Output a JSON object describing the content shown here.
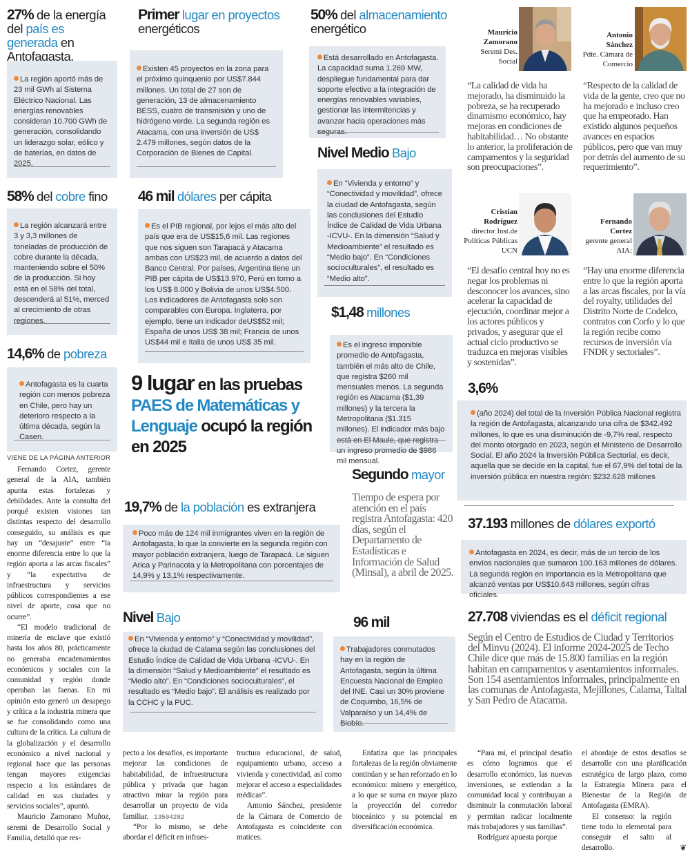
{
  "colors": {
    "accent_blue": "#2389c2",
    "box_bg": "#e3e9ee",
    "bullet_orange": "#f0883a"
  },
  "stats": {
    "energia": {
      "head": [
        "27%",
        " de la energía del ",
        "país es generada",
        " en Antofagasta."
      ],
      "body": "La región aportó más de 23 mil GWh al Sistema Eléctrico Nacional. Las energías renovables consideran 10.700 GWh de generación, consolidando un liderazgo solar, eólico y de baterías, en datos de 2025."
    },
    "primer": {
      "head": [
        "Primer",
        " lugar en proyectos",
        " energéticos"
      ],
      "body": "Existen 45 proyectos en la zona para el próximo quinquenio por US$7.844 millones. Un total de 27 son de generación, 13 de almacenamiento BESS, cuatro de transmisión y uno de hidrógeno verde. La segunda región es Atacama, con una inversión de US$ 2.479 millones, según datos de la Corporación de Bienes de Capital."
    },
    "almacenamiento": {
      "head": [
        "50%",
        " del ",
        "almacenamiento",
        " energético"
      ],
      "body": "Está desarrollado en Antofagasta. La capacidad suma 1.269 MW, despliegue fundamental para dar soporte efectivo a la integración de energías renovables variables, gestionar las intermitencias y avanzar hacia operaciones más seguras."
    },
    "nivel_medio": {
      "head": [
        "Nivel Medio",
        " Bajo"
      ],
      "body": "En “Vivienda y entorno” y “Conectividad y movilidad”, ofrece la ciudad de Antofagasta, según las conclusiones del Estudio Índice de Calidad de Vida Urbana -ICVU-. En la dimensión “Salud y Medioambiente” el resultado es “Medio bajo”. En “Condiciones socioculturales”, el resultado es “Medio alto”."
    },
    "cobre": {
      "head": [
        "58%",
        " del ",
        "cobre",
        " fino"
      ],
      "body": "La región alcanzará entre 3 y 3,3 millones de toneladas de producción de cobre durante la década, manteniendo sobre el 50% de la producción. Si hoy está en el 58% del total, descenderá al 51%, merced al crecimiento de otras regiones."
    },
    "pib": {
      "head": [
        "46 mil",
        " dólares",
        " per cápita"
      ],
      "body": "Es el PIB regional, por lejos el más alto del país que era de US$15,6 mil. Las regiones que nos siguen son Tarapacá y Atacama ambas con US$23 mil, de acuerdo a datos del Banco Central. Por países, Argentina tiene un PIB per cápita de US$13.970, Perú en torno a los US$ 8.000 y Bolivia de unos US$4.500. Los indicadores de Antofagasta solo son comparables con Europa. Inglaterra, por ejemplo, tiene un indicador deUS$52 mil; España de unos US$ 38 mil; Francia de unos US$44 mil e Italia de unos US$ 35 mil."
    },
    "ingreso": {
      "head": [
        "$1,48",
        " millones"
      ],
      "body": "Es el ingreso imponible promedio de Antofagasta, también el más alto de Chile, que registra $260 mil mensuales menos. La segunda región es Atacama ($1,39 millones) y la tercera la Metropolitana ($1.315 millones). El indicador más bajo está en El Maule, que registra un ingreso promedio de $986 mil mensual."
    },
    "pobreza": {
      "head": [
        "14,6%",
        " de ",
        "pobreza"
      ],
      "body": "Antofagasta es la cuarta región con menos pobreza en Chile, pero hay un deterioro respecto a la última década, según la Casen."
    },
    "paes": {
      "head": [
        "9 lugar",
        " en las pruebas ",
        "PAES de Matemáticas y Lenguaje",
        " ocupó la región en 2025"
      ]
    },
    "extranjera": {
      "head": [
        "19,7%",
        " de ",
        "la población",
        " es extranjera"
      ],
      "body": "Poco más de 124 mil inmigrantes viven en la región de Antofagasta, lo que la convierte en la segunda región con mayor población extranjera, luego de Tarapacá. Le siguen Arica y Parinacota y la Metropolitana con porcentajes de 14,9% y 13,1% respectivamente."
    },
    "segundo": {
      "head": [
        "Segundo",
        " mayor"
      ],
      "body": "Tiempo de espera por atención en el país registra Antofagasta: 420 días, según el Departamento de Estadísticas e Información de Salud (Minsal), a abril de 2025."
    },
    "nivel_bajo": {
      "head": [
        "Nivel",
        " Bajo"
      ],
      "body": "En “Vivienda y entorno” y “Conectividad y movilidad”, ofrece la ciudad de Calama según las conclusiones del Estudio Índice de Calidad de Vida Urbana -ICVU-. En la dimensión “Salud y Medioambiente” el resultado es “Medio alto”. En “Condiciones socioculturales”, el resultado es “Medio bajo”. El análisis es realizado por la CCHC y la PUC."
    },
    "conmutados": {
      "head": [
        "96 mil"
      ],
      "body": "Trabajadores conmutados hay en la región de Antofagasta, según la última Encuesta Nacional de Empleo del INE. Casi un 30% proviene de Coquimbo, 16,5% de Valparaíso y un 14,4% de Biobío."
    },
    "inversion": {
      "head": [
        "3,6%"
      ],
      "body": "(año 2024) del total de la Inversión Pública Nacional registra la región de Antofagasta, alcanzando una cifra de $342.492 millones, lo que es una disminución de -9,7% real, respecto del monto otorgado en 2023, según el Ministerio de Desarrollo Social. El año 2024 la Inversión Pública Sectorial, es decir, aquella que se decide en la capital, fue el 67,9% del total de la inversión pública en nuestra región: $232.628 millones"
    },
    "exportacion": {
      "head": [
        "37.193",
        " millones de ",
        "dólares exportó"
      ],
      "body": "Antofagasta en 2024, es decir, más de un tercio de los envíos nacionales que sumaron 100.163 millones de dólares. La segunda región en importancia es la Metropolitana que alcanzó ventas por US$10.643 millones, según cifras oficiales."
    },
    "vivienda": {
      "head": [
        "27.708",
        " viviendas es el ",
        "déficit regional"
      ],
      "body": "Según el Centro de Estudios de Ciudad y Territorios del Minvu (2024). El informe 2024-2025 de Techo Chile dice que más de 15.800 familias en la región habitan en campamentos y asentamientos informales. Son 154 asentamientos informales, principalmente en las comunas de Antofagasta, Mejillones, Calama, Taltal y San Pedro de Atacama."
    }
  },
  "people": [
    {
      "first": "Mauricio",
      "last": "Zamorano",
      "role": "Seremi Des. Social",
      "quote": "“La calidad de vida ha mejorado, ha disminuido la pobreza, se ha recuperado dinamismo económico, hay mejoras en condiciones de habitabilidad… No obstante lo anterior, la proliferación de campamentos y la seguridad son preocupaciones”."
    },
    {
      "first": "Antonio",
      "last": "Sánchez",
      "role": "Pdte. Cámara de Comercio",
      "quote": "“Respecto de la calidad de vida de la gente, creo que no ha mejorado e incluso creo que ha empeorado. Han existido algunos pequeños avances en espacios públicos, pero que van muy por detrás del aumento de su requerimiento”."
    },
    {
      "first": "Cristian",
      "last": "Rodríguez",
      "role": "director Inst.de Políticas Públicas UCN",
      "quote": "“El desafío central hoy no es negar los problemas ni desconocer los avances, sino acelerar la capacidad de ejecución, coordinar mejor a los actores públicos y privados, y asegurar que el actual ciclo productivo se traduzca en mejoras visibles y sostenidas”."
    },
    {
      "first": "Fernando",
      "last": "Cortez",
      "role": "gerente general AIA:",
      "quote": "“Hay una enorme diferencia entre lo que la región aporta a las arcas fiscales, por la vía del royalty, utilidades del Distrito Norte de Codelco, contratos con Corfo y lo que la región recibe como recursos de inversión vía FNDR y sectoriales”."
    }
  ],
  "article": {
    "kicker": "VIENE DE LA PÁGINA ANTERIOR",
    "code": "13504282",
    "end_mark_icon": "end-of-article-icon",
    "columns": [
      [
        "Fernando Cortez, gerente general de la AIA, también apunta estas fortalezas y debilidades. Ante la consulta del porqué existen visiones tan distintas respecto del desarrollo conseguido, su análisis es que hay un “desajuste” entre “la enorme diferencia entre lo que la región aporta a las arcas fiscales” y “la expectativa de infraestructura y servicios públicos correspondientes a ese nivel de aporte, cosa que no ocurre”.",
        "“El modelo tradicional de minería de enclave que existió hasta los años 80, prácticamente no generaba encadenamientos económicos y sociales con la comunidad y región donde operaban las faenas. En mi opinión esto generó un desapego y crítica a la industria minera que se fue consolidando como una cultura de la crítica. La cultura de la globalización y el desarrollo económico a nivel nacional y regional hace que las personas tengan mayores exigencias respecto a los estándares de calidad en sus ciudades y servicios sociales”, apuntó.",
        "Mauricio Zamorano Muñoz, seremi de Desarrollo Social y Familia, detalló que res-"
      ],
      [
        "pecto a los desafíos, es importante mejorar las condiciones de habitabilidad, de infraestructura pública y privada que hagan atractivo mirar la región para desarrollar un proyecto de vida familiar.",
        "“Por lo mismo, se debe abordar el déficit en infraes-"
      ],
      [
        "tructura educacional, de salud, equipamiento urbano, acceso a vivienda y conectividad, así como mejorar el acceso a especialidades médicas”.",
        "Antonio Sánchez, presidente de la Cámara de Comercio de Antofagasta es coincidente con matices."
      ],
      [
        "Enfatiza que las principales fortalezas de la región obviamente continúan y se han reforzado en lo económico: minero y energético, a lo que se suma en mayor plazo la proyección del corredor bioceánico y su potencial en diversificación económica."
      ],
      [
        "“Para mí, el principal desafío es cómo logramos que el desarrollo económico, las nuevas inversiones, se extiendan a la comunidad local y contribuyan a disminuir la conmutación laboral y permitan radicar localmente más trabajadores y sus familias”.",
        "Rodríguez apuesta porque"
      ],
      [
        "el abordaje de estos desafíos se desarrolle con una planificación estratégica de largo plazo, como la Estrategia Minera para el Bienestar de la Región de Antofagasta (EMRA).",
        "El consenso: la región tiene todo lo elemental para conseguir el salto al desarrollo."
      ]
    ]
  }
}
